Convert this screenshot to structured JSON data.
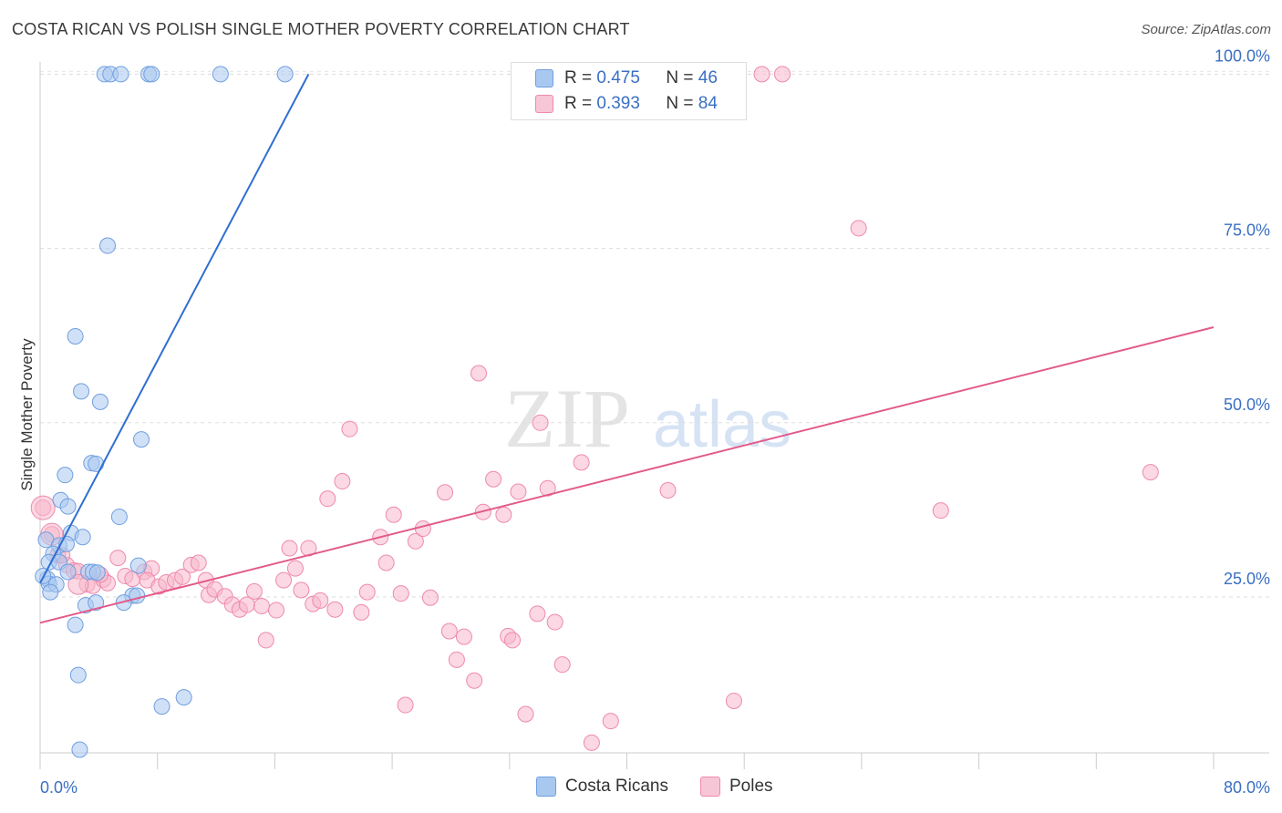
{
  "title": "COSTA RICAN VS POLISH SINGLE MOTHER POVERTY CORRELATION CHART",
  "source": "Source: ZipAtlas.com",
  "watermark": {
    "zip": "ZIP",
    "atlas": "atlas"
  },
  "legend": {
    "r_label": "R =",
    "n_label": "N =",
    "rows": [
      {
        "r": "0.475",
        "n": "46"
      },
      {
        "r": "0.393",
        "n": "84"
      }
    ]
  },
  "bottom_legend": {
    "costa": "Costa Ricans",
    "poles": "Poles"
  },
  "colors": {
    "blue_fill": "#a9c8f0",
    "blue_stroke": "#6f9fe0",
    "blue_line": "#2f6fd1",
    "pink_fill": "#f7b8cc",
    "pink_stroke": "#ee8aab",
    "pink_line": "#e25a8a",
    "tick_label": "#3a6fc4"
  },
  "chart_data": {
    "type": "scatter",
    "title": "COSTA RICAN VS POLISH SINGLE MOTHER POVERTY CORRELATION CHART",
    "xlabel": "",
    "ylabel": "Single Mother Poverty",
    "xlim": [
      0,
      80
    ],
    "ylim": [
      0,
      105
    ],
    "x_tick_labels": [
      "0.0%",
      "80.0%"
    ],
    "y_ticks": [
      25,
      50,
      75,
      100
    ],
    "y_tick_labels": [
      "25.0%",
      "50.0%",
      "75.0%",
      "100.0%"
    ],
    "legend_position": "top-center",
    "series": [
      {
        "name": "Costa Ricans",
        "r": 0.475,
        "n": 46,
        "trend": {
          "x1": 0,
          "y1": 27,
          "x2": 18.3,
          "y2": 100
        },
        "points": [
          [
            4.4,
            100
          ],
          [
            4.8,
            100
          ],
          [
            5.5,
            100
          ],
          [
            7.4,
            100
          ],
          [
            7.6,
            100
          ],
          [
            12.3,
            100
          ],
          [
            16.7,
            100
          ],
          [
            4.6,
            75.4
          ],
          [
            2.4,
            62.4
          ],
          [
            2.8,
            54.5
          ],
          [
            4.1,
            53
          ],
          [
            6.9,
            47.6
          ],
          [
            3.5,
            44.2
          ],
          [
            3.8,
            44.1
          ],
          [
            1.7,
            42.5
          ],
          [
            1.4,
            38.9
          ],
          [
            1.9,
            38
          ],
          [
            5.4,
            36.5
          ],
          [
            0.4,
            33.2
          ],
          [
            2.1,
            34.2
          ],
          [
            2.9,
            33.6
          ],
          [
            1.3,
            32.4
          ],
          [
            1.8,
            32.6
          ],
          [
            0.9,
            31.2
          ],
          [
            0.6,
            30
          ],
          [
            1.3,
            30
          ],
          [
            1.9,
            28.6
          ],
          [
            3.3,
            28.6
          ],
          [
            3.6,
            28.6
          ],
          [
            3.9,
            28.5
          ],
          [
            6.7,
            29.5
          ],
          [
            0.5,
            27.6
          ],
          [
            0.6,
            26.9
          ],
          [
            1.1,
            26.8
          ],
          [
            0.7,
            25.7
          ],
          [
            6.3,
            25.2
          ],
          [
            6.6,
            25.2
          ],
          [
            3.1,
            23.8
          ],
          [
            3.8,
            24.2
          ],
          [
            5.7,
            24.2
          ],
          [
            2.4,
            21
          ],
          [
            2.6,
            13.8
          ],
          [
            8.3,
            9.3
          ],
          [
            9.8,
            10.6
          ],
          [
            2.7,
            3.1
          ],
          [
            0.2,
            28
          ]
        ]
      },
      {
        "name": "Poles",
        "r": 0.393,
        "n": 84,
        "trend": {
          "x1": 0,
          "y1": 21.3,
          "x2": 80,
          "y2": 63.7
        },
        "points": [
          [
            0.2,
            37.8
          ],
          [
            0.8,
            34
          ],
          [
            1.2,
            31
          ],
          [
            1.8,
            29.6
          ],
          [
            2.3,
            28.8
          ],
          [
            2.6,
            28.7
          ],
          [
            3.2,
            26.8
          ],
          [
            3.6,
            26.6
          ],
          [
            4.3,
            27.5
          ],
          [
            4.6,
            27
          ],
          [
            5.3,
            30.6
          ],
          [
            5.8,
            28
          ],
          [
            6.3,
            27.6
          ],
          [
            7.1,
            28.6
          ],
          [
            7.6,
            29.1
          ],
          [
            7.3,
            27.4
          ],
          [
            8.1,
            26.5
          ],
          [
            8.6,
            27.1
          ],
          [
            9.2,
            27.4
          ],
          [
            9.7,
            27.9
          ],
          [
            10.3,
            29.6
          ],
          [
            10.8,
            29.9
          ],
          [
            11.3,
            27.4
          ],
          [
            11.5,
            25.3
          ],
          [
            11.9,
            26.1
          ],
          [
            12.6,
            25.1
          ],
          [
            13.1,
            23.9
          ],
          [
            13.6,
            23.2
          ],
          [
            14.1,
            23.9
          ],
          [
            14.6,
            25.8
          ],
          [
            15.1,
            23.7
          ],
          [
            15.4,
            18.8
          ],
          [
            16.1,
            23.1
          ],
          [
            16.6,
            27.4
          ],
          [
            17.4,
            29.1
          ],
          [
            17.8,
            26
          ],
          [
            18.3,
            32
          ],
          [
            18.6,
            24
          ],
          [
            19.1,
            24.5
          ],
          [
            19.6,
            39.1
          ],
          [
            20.1,
            23.2
          ],
          [
            20.6,
            41.6
          ],
          [
            21.1,
            49.1
          ],
          [
            21.9,
            22.8
          ],
          [
            22.3,
            25.7
          ],
          [
            23.2,
            33.6
          ],
          [
            23.6,
            29.9
          ],
          [
            24.1,
            36.8
          ],
          [
            24.6,
            25.5
          ],
          [
            24.9,
            9.5
          ],
          [
            25.6,
            33
          ],
          [
            26.1,
            34.8
          ],
          [
            26.6,
            24.9
          ],
          [
            27.6,
            40
          ],
          [
            27.9,
            20.1
          ],
          [
            28.4,
            16
          ],
          [
            28.9,
            19.3
          ],
          [
            29.6,
            13
          ],
          [
            29.9,
            57.1
          ],
          [
            30.2,
            37.2
          ],
          [
            30.9,
            41.9
          ],
          [
            31.6,
            36.8
          ],
          [
            31.9,
            19.4
          ],
          [
            32.2,
            18.8
          ],
          [
            32.6,
            40.1
          ],
          [
            33.1,
            8.2
          ],
          [
            33.9,
            22.6
          ],
          [
            34.1,
            50
          ],
          [
            34.6,
            40.6
          ],
          [
            35.1,
            21.4
          ],
          [
            35.6,
            15.3
          ],
          [
            36.9,
            44.3
          ],
          [
            37.6,
            4.1
          ],
          [
            38.9,
            7.2
          ],
          [
            42.8,
            40.3
          ],
          [
            47.3,
            10.1
          ],
          [
            49.2,
            100
          ],
          [
            50.6,
            100
          ],
          [
            55.8,
            77.9
          ],
          [
            61.4,
            37.4
          ],
          [
            75.7,
            42.9
          ],
          [
            1.5,
            31
          ],
          [
            4.1,
            28.2
          ],
          [
            17,
            32
          ]
        ]
      }
    ]
  }
}
